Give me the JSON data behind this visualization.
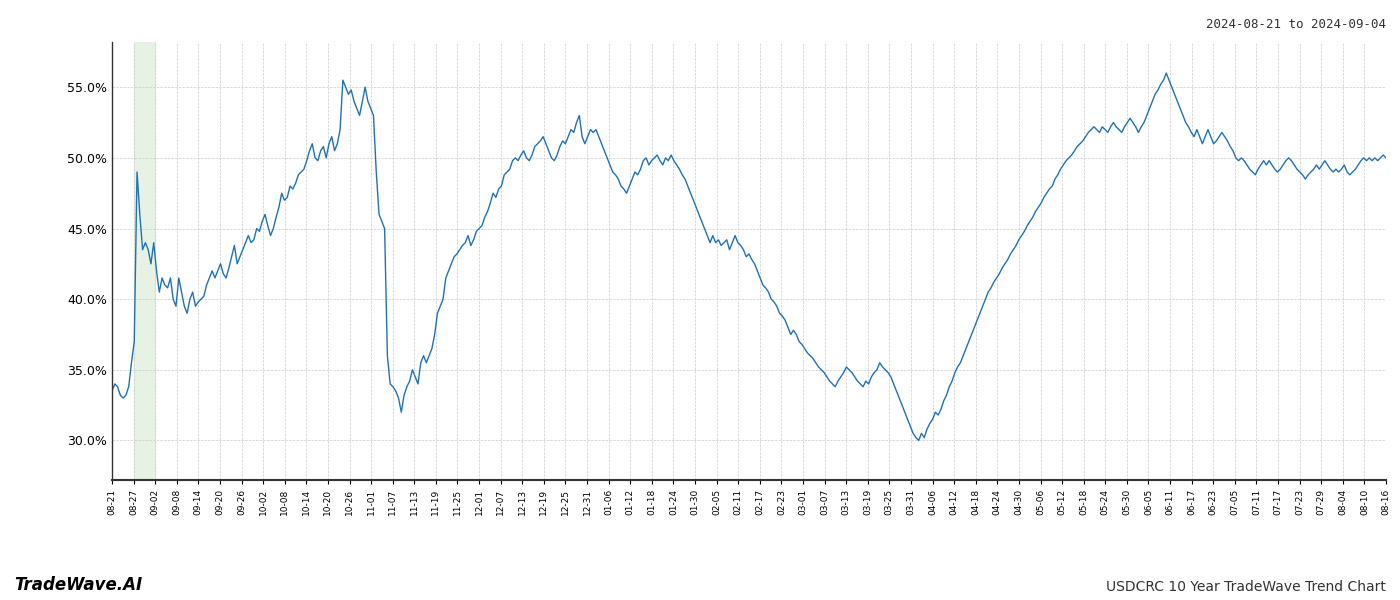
{
  "title_right": "2024-08-21 to 2024-09-04",
  "title_bottom_left": "TradeWave.AI",
  "title_bottom_right": "USDCRC 10 Year TradeWave Trend Chart",
  "line_color": "#2171b5",
  "highlight_color": "#d6ecd2",
  "highlight_alpha": 0.6,
  "background_color": "#ffffff",
  "grid_color": "#cccccc",
  "grid_style": "--",
  "ylim": [
    0.272,
    0.582
  ],
  "yticks": [
    0.3,
    0.35,
    0.4,
    0.45,
    0.5,
    0.55
  ],
  "ytick_labels": [
    "30.0%",
    "35.0%",
    "40.0%",
    "45.0%",
    "50.0%",
    "55.0%"
  ],
  "xtick_labels": [
    "08-21",
    "08-27",
    "09-02",
    "09-08",
    "09-14",
    "09-20",
    "09-26",
    "10-02",
    "10-08",
    "10-14",
    "10-20",
    "10-26",
    "11-01",
    "11-07",
    "11-13",
    "11-19",
    "11-25",
    "12-01",
    "12-07",
    "12-13",
    "12-19",
    "12-25",
    "12-31",
    "01-06",
    "01-12",
    "01-18",
    "01-24",
    "01-30",
    "02-05",
    "02-11",
    "02-17",
    "02-23",
    "03-01",
    "03-07",
    "03-13",
    "03-19",
    "03-25",
    "03-31",
    "04-06",
    "04-12",
    "04-18",
    "04-24",
    "04-30",
    "05-06",
    "05-12",
    "05-18",
    "05-24",
    "05-30",
    "06-05",
    "06-11",
    "06-17",
    "06-23",
    "07-05",
    "07-11",
    "07-17",
    "07-23",
    "07-29",
    "08-04",
    "08-10",
    "08-16"
  ],
  "highlight_xstart": 5,
  "highlight_xend": 11,
  "num_points": 520,
  "values": [
    0.335,
    0.34,
    0.338,
    0.332,
    0.33,
    0.332,
    0.338,
    0.355,
    0.37,
    0.49,
    0.46,
    0.435,
    0.44,
    0.435,
    0.425,
    0.44,
    0.42,
    0.405,
    0.415,
    0.41,
    0.408,
    0.415,
    0.4,
    0.395,
    0.415,
    0.405,
    0.395,
    0.39,
    0.4,
    0.405,
    0.395,
    0.398,
    0.4,
    0.402,
    0.41,
    0.415,
    0.42,
    0.415,
    0.42,
    0.425,
    0.418,
    0.415,
    0.422,
    0.43,
    0.438,
    0.425,
    0.43,
    0.435,
    0.44,
    0.445,
    0.44,
    0.442,
    0.45,
    0.448,
    0.455,
    0.46,
    0.452,
    0.445,
    0.45,
    0.458,
    0.465,
    0.475,
    0.47,
    0.472,
    0.48,
    0.478,
    0.482,
    0.488,
    0.49,
    0.492,
    0.498,
    0.505,
    0.51,
    0.5,
    0.498,
    0.505,
    0.508,
    0.5,
    0.51,
    0.515,
    0.505,
    0.51,
    0.52,
    0.555,
    0.55,
    0.545,
    0.548,
    0.54,
    0.535,
    0.53,
    0.54,
    0.55,
    0.54,
    0.535,
    0.53,
    0.49,
    0.46,
    0.455,
    0.45,
    0.36,
    0.34,
    0.338,
    0.335,
    0.33,
    0.32,
    0.332,
    0.338,
    0.342,
    0.35,
    0.345,
    0.34,
    0.355,
    0.36,
    0.355,
    0.36,
    0.365,
    0.375,
    0.39,
    0.395,
    0.4,
    0.415,
    0.42,
    0.425,
    0.43,
    0.432,
    0.435,
    0.438,
    0.44,
    0.445,
    0.438,
    0.442,
    0.448,
    0.45,
    0.452,
    0.458,
    0.462,
    0.468,
    0.475,
    0.472,
    0.478,
    0.48,
    0.488,
    0.49,
    0.492,
    0.498,
    0.5,
    0.498,
    0.502,
    0.505,
    0.5,
    0.498,
    0.502,
    0.508,
    0.51,
    0.512,
    0.515,
    0.51,
    0.505,
    0.5,
    0.498,
    0.502,
    0.508,
    0.512,
    0.51,
    0.515,
    0.52,
    0.518,
    0.525,
    0.53,
    0.515,
    0.51,
    0.515,
    0.52,
    0.518,
    0.52,
    0.515,
    0.51,
    0.505,
    0.5,
    0.495,
    0.49,
    0.488,
    0.485,
    0.48,
    0.478,
    0.475,
    0.48,
    0.485,
    0.49,
    0.488,
    0.492,
    0.498,
    0.5,
    0.495,
    0.498,
    0.5,
    0.502,
    0.498,
    0.495,
    0.5,
    0.498,
    0.502,
    0.498,
    0.495,
    0.492,
    0.488,
    0.485,
    0.48,
    0.475,
    0.47,
    0.465,
    0.46,
    0.455,
    0.45,
    0.445,
    0.44,
    0.445,
    0.44,
    0.442,
    0.438,
    0.44,
    0.442,
    0.435,
    0.44,
    0.445,
    0.44,
    0.438,
    0.435,
    0.43,
    0.432,
    0.428,
    0.425,
    0.42,
    0.415,
    0.41,
    0.408,
    0.405,
    0.4,
    0.398,
    0.395,
    0.39,
    0.388,
    0.385,
    0.38,
    0.375,
    0.378,
    0.375,
    0.37,
    0.368,
    0.365,
    0.362,
    0.36,
    0.358,
    0.355,
    0.352,
    0.35,
    0.348,
    0.345,
    0.342,
    0.34,
    0.338,
    0.342,
    0.345,
    0.348,
    0.352,
    0.35,
    0.348,
    0.345,
    0.342,
    0.34,
    0.338,
    0.342,
    0.34,
    0.345,
    0.348,
    0.35,
    0.355,
    0.352,
    0.35,
    0.348,
    0.345,
    0.34,
    0.335,
    0.33,
    0.325,
    0.32,
    0.315,
    0.31,
    0.305,
    0.302,
    0.3,
    0.305,
    0.302,
    0.308,
    0.312,
    0.315,
    0.32,
    0.318,
    0.322,
    0.328,
    0.332,
    0.338,
    0.342,
    0.348,
    0.352,
    0.355,
    0.36,
    0.365,
    0.37,
    0.375,
    0.38,
    0.385,
    0.39,
    0.395,
    0.4,
    0.405,
    0.408,
    0.412,
    0.415,
    0.418,
    0.422,
    0.425,
    0.428,
    0.432,
    0.435,
    0.438,
    0.442,
    0.445,
    0.448,
    0.452,
    0.455,
    0.458,
    0.462,
    0.465,
    0.468,
    0.472,
    0.475,
    0.478,
    0.48,
    0.485,
    0.488,
    0.492,
    0.495,
    0.498,
    0.5,
    0.502,
    0.505,
    0.508,
    0.51,
    0.512,
    0.515,
    0.518,
    0.52,
    0.522,
    0.52,
    0.518,
    0.522,
    0.52,
    0.518,
    0.522,
    0.525,
    0.522,
    0.52,
    0.518,
    0.522,
    0.525,
    0.528,
    0.525,
    0.522,
    0.518,
    0.522,
    0.525,
    0.53,
    0.535,
    0.54,
    0.545,
    0.548,
    0.552,
    0.555,
    0.56,
    0.555,
    0.55,
    0.545,
    0.54,
    0.535,
    0.53,
    0.525,
    0.522,
    0.518,
    0.515,
    0.52,
    0.515,
    0.51,
    0.515,
    0.52,
    0.515,
    0.51,
    0.512,
    0.515,
    0.518,
    0.515,
    0.512,
    0.508,
    0.505,
    0.5,
    0.498,
    0.5,
    0.498,
    0.495,
    0.492,
    0.49,
    0.488,
    0.492,
    0.495,
    0.498,
    0.495,
    0.498,
    0.495,
    0.492,
    0.49,
    0.492,
    0.495,
    0.498,
    0.5,
    0.498,
    0.495,
    0.492,
    0.49,
    0.488,
    0.485,
    0.488,
    0.49,
    0.492,
    0.495,
    0.492,
    0.495,
    0.498,
    0.495,
    0.492,
    0.49,
    0.492,
    0.49,
    0.492,
    0.495,
    0.49,
    0.488,
    0.49,
    0.492,
    0.495,
    0.498,
    0.5,
    0.498,
    0.5,
    0.498,
    0.5,
    0.498,
    0.5,
    0.502,
    0.5
  ]
}
